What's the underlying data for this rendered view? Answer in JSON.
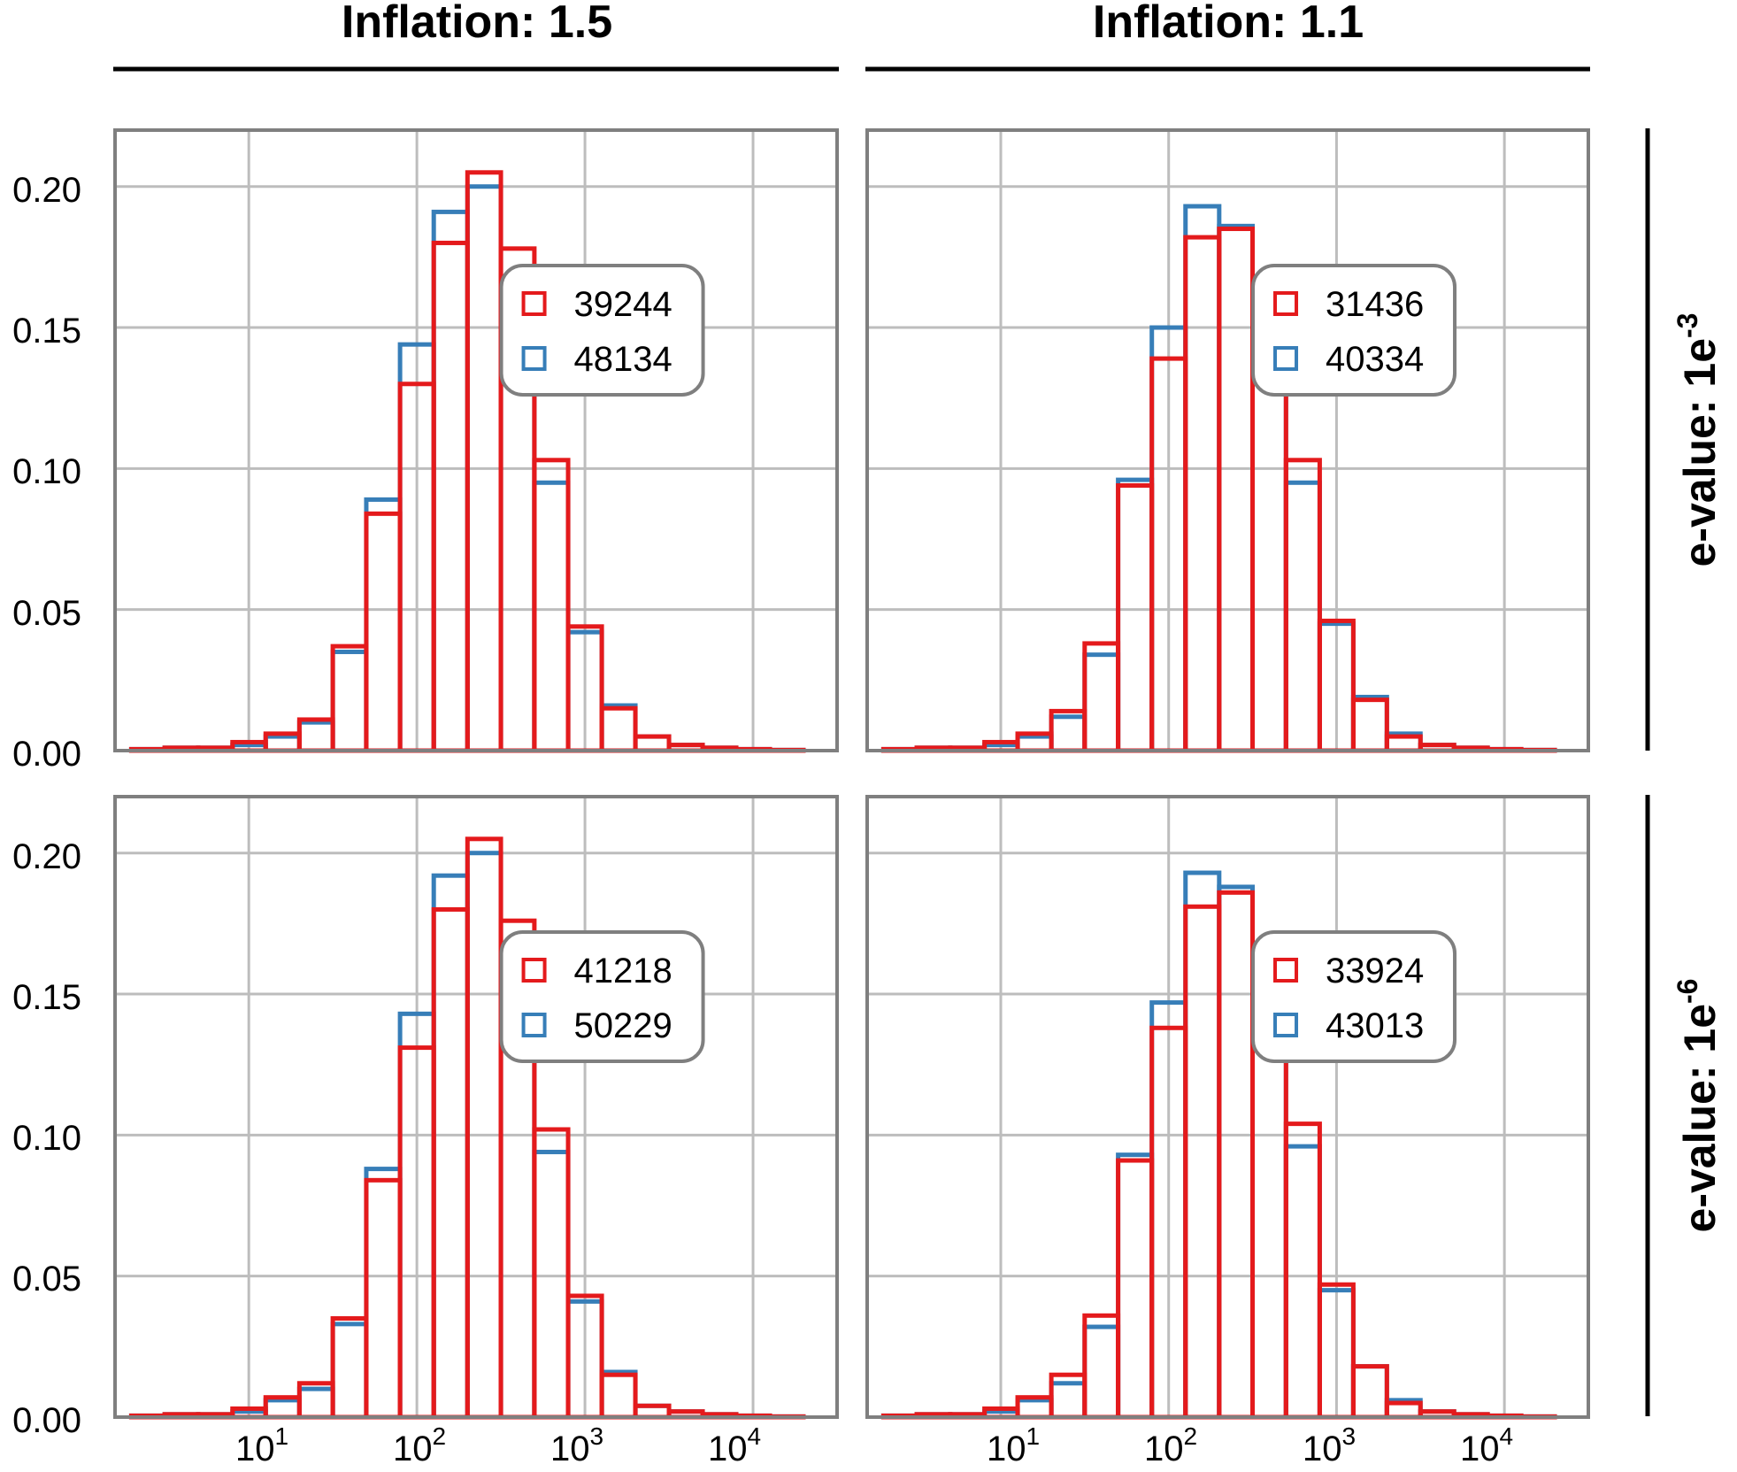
{
  "colors": {
    "red": "#e41a1c",
    "blue": "#377eb8",
    "grid": "#bdbdbd",
    "frame": "#7f7f7f"
  },
  "chart_data": {
    "type": "histogram",
    "layout": "facet grid 2x2",
    "x_scale": "log10",
    "xlim": [
      1.6,
      31623
    ],
    "ylim": [
      0,
      0.22
    ],
    "grid": true,
    "legend_placement": "inside each panel, right",
    "column_strips": [
      "Inflation: 1.5",
      "Inflation: 1.1"
    ],
    "row_strips": [
      {
        "base": "e-value: 1e",
        "exp": "-3"
      },
      {
        "base": "e-value: 1e",
        "exp": "-6"
      }
    ],
    "y_ticks": [
      "0.00",
      "0.05",
      "0.10",
      "0.15",
      "0.20"
    ],
    "y_tick_values": [
      0,
      0.05,
      0.1,
      0.15,
      0.2
    ],
    "x_ticks": [
      {
        "base": "10",
        "exp": "1",
        "value": 10
      },
      {
        "base": "10",
        "exp": "2",
        "value": 100
      },
      {
        "base": "10",
        "exp": "3",
        "value": 1000
      },
      {
        "base": "10",
        "exp": "4",
        "value": 10000
      }
    ],
    "bin_edges": [
      2,
      3.16,
      5,
      8,
      12.6,
      20,
      31.6,
      50,
      79.4,
      126,
      200,
      316,
      500,
      794,
      1259,
      1995,
      3162,
      5012,
      7943,
      12589,
      19953
    ],
    "panels": [
      {
        "row": 0,
        "col": 0,
        "series": [
          {
            "name": "39244",
            "color": "#e41a1c",
            "values": [
              0.0005,
              0.001,
              0.001,
              0.003,
              0.006,
              0.011,
              0.037,
              0.084,
              0.13,
              0.18,
              0.205,
              0.178,
              0.103,
              0.044,
              0.015,
              0.005,
              0.002,
              0.001,
              0.0005,
              0.0002
            ]
          },
          {
            "name": "48134",
            "color": "#377eb8",
            "values": [
              0.0005,
              0.001,
              0.001,
              0.002,
              0.005,
              0.01,
              0.035,
              0.089,
              0.144,
              0.191,
              0.2,
              0.165,
              0.095,
              0.042,
              0.016,
              0.005,
              0.002,
              0.001,
              0.0005,
              0.0002
            ]
          }
        ]
      },
      {
        "row": 0,
        "col": 1,
        "series": [
          {
            "name": "31436",
            "color": "#e41a1c",
            "values": [
              0.0005,
              0.001,
              0.001,
              0.003,
              0.006,
              0.014,
              0.038,
              0.094,
              0.139,
              0.182,
              0.185,
              0.167,
              0.103,
              0.046,
              0.018,
              0.005,
              0.002,
              0.001,
              0.0005,
              0.0002
            ]
          },
          {
            "name": "40334",
            "color": "#377eb8",
            "values": [
              0.0005,
              0.001,
              0.001,
              0.002,
              0.005,
              0.012,
              0.034,
              0.096,
              0.15,
              0.193,
              0.186,
              0.154,
              0.095,
              0.045,
              0.019,
              0.006,
              0.002,
              0.001,
              0.0005,
              0.0002
            ]
          }
        ]
      },
      {
        "row": 1,
        "col": 0,
        "series": [
          {
            "name": "41218",
            "color": "#e41a1c",
            "values": [
              0.0005,
              0.001,
              0.001,
              0.003,
              0.007,
              0.012,
              0.035,
              0.084,
              0.131,
              0.18,
              0.205,
              0.176,
              0.102,
              0.043,
              0.015,
              0.004,
              0.002,
              0.001,
              0.0005,
              0.0002
            ]
          },
          {
            "name": "50229",
            "color": "#377eb8",
            "values": [
              0.0005,
              0.001,
              0.001,
              0.002,
              0.006,
              0.01,
              0.033,
              0.088,
              0.143,
              0.192,
              0.2,
              0.164,
              0.094,
              0.041,
              0.016,
              0.004,
              0.002,
              0.001,
              0.0005,
              0.0002
            ]
          }
        ]
      },
      {
        "row": 1,
        "col": 1,
        "series": [
          {
            "name": "33924",
            "color": "#e41a1c",
            "values": [
              0.0005,
              0.001,
              0.001,
              0.003,
              0.007,
              0.015,
              0.036,
              0.091,
              0.138,
              0.181,
              0.186,
              0.168,
              0.104,
              0.047,
              0.018,
              0.005,
              0.002,
              0.001,
              0.0005,
              0.0002
            ]
          },
          {
            "name": "43013",
            "color": "#377eb8",
            "values": [
              0.0005,
              0.001,
              0.001,
              0.002,
              0.006,
              0.012,
              0.032,
              0.093,
              0.147,
              0.193,
              0.188,
              0.156,
              0.096,
              0.045,
              0.018,
              0.006,
              0.002,
              0.001,
              0.0005,
              0.0002
            ]
          }
        ]
      }
    ]
  }
}
